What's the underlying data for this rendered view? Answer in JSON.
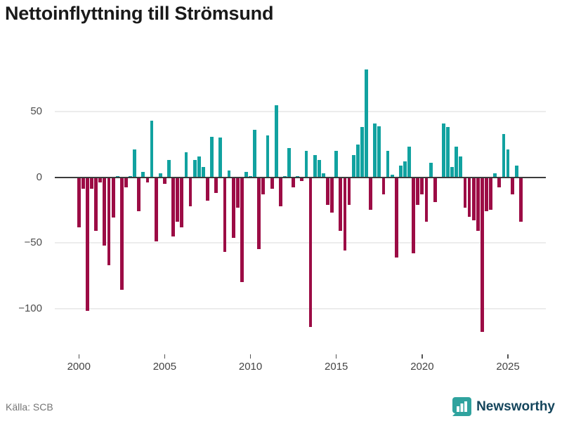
{
  "title": "Nettoinflyttning till Strömsund",
  "footer": {
    "source": "Källa: SCB",
    "brand": "Newsworthy"
  },
  "chart_data": {
    "type": "bar",
    "title": "Nettoinflyttning till Strömsund",
    "frequency": "quarterly",
    "x_start": {
      "year": 2000,
      "quarter": 1
    },
    "x_end": {
      "year": 2025,
      "quarter": 4
    },
    "values": [
      -38,
      -9,
      -102,
      -9,
      -41,
      -4,
      -52,
      -67,
      -31,
      1,
      -86,
      -8,
      1,
      21,
      -26,
      4,
      -4,
      43,
      -49,
      3,
      -5,
      13,
      -45,
      -34,
      -38,
      19,
      -22,
      13,
      16,
      8,
      -18,
      31,
      -12,
      30,
      -57,
      5,
      -46,
      -23,
      -80,
      4,
      1,
      36,
      -55,
      -13,
      32,
      -9,
      55,
      -22,
      1,
      22,
      -8,
      1,
      -3,
      20,
      -114,
      17,
      13,
      3,
      -21,
      -27,
      20,
      -41,
      -56,
      -21,
      17,
      25,
      38,
      82,
      -25,
      41,
      39,
      -13,
      20,
      2,
      -61,
      9,
      12,
      23,
      -58,
      -21,
      -13,
      -34,
      11,
      -19,
      0,
      41,
      38,
      8,
      23,
      16,
      -23,
      -30,
      -33,
      -41,
      -118,
      -26,
      -25,
      3,
      -8,
      33,
      21,
      -13,
      9,
      -34
    ],
    "xticks": [
      2000,
      2005,
      2010,
      2015,
      2020,
      2025
    ],
    "yticks": [
      {
        "label": "50",
        "value": 50
      },
      {
        "label": "0",
        "value": 0
      },
      {
        "label": "−50",
        "value": -50
      },
      {
        "label": "−100",
        "value": -100
      }
    ],
    "ylim": [
      -120,
      100
    ],
    "xlabel": "",
    "ylabel": "",
    "legend": "none",
    "grid": "horizontal",
    "colors": {
      "positive": "#11a2a0",
      "negative": "#9c0c45",
      "axis_line": "#3c3c3c",
      "grid_line": "#ececec",
      "brand_teal": "#2fa39e",
      "brand_navy": "#14455c"
    }
  }
}
